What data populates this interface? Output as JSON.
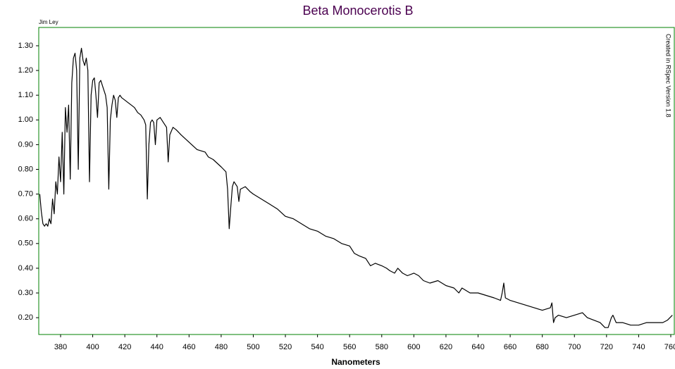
{
  "chart_data": {
    "type": "line",
    "title": "Beta Monocerotis B",
    "xlabel": "Nanometers",
    "annotations": [
      "Jim Ley",
      "Created in RSpec Version 1.8"
    ],
    "color": "#000000",
    "frame_color": "#008000",
    "title_color": "#4b0050",
    "grid": false,
    "xlim": [
      366.4,
      762.2
    ],
    "ylim": [
      0.132,
      1.374
    ],
    "xticks": [
      380,
      400,
      420,
      440,
      460,
      480,
      500,
      520,
      540,
      560,
      580,
      600,
      620,
      640,
      660,
      680,
      700,
      720,
      740,
      760
    ],
    "yticks": [
      {
        "value": 0.2,
        "label": "0.20"
      },
      {
        "value": 0.3,
        "label": "0.30"
      },
      {
        "value": 0.4,
        "label": "0.40"
      },
      {
        "value": 0.5,
        "label": "0.50"
      },
      {
        "value": 0.6,
        "label": "0.60"
      },
      {
        "value": 0.7,
        "label": "0.70"
      },
      {
        "value": 0.8,
        "label": "0.80"
      },
      {
        "value": 0.9,
        "label": "0.90"
      },
      {
        "value": 1.0,
        "label": "1.00"
      },
      {
        "value": 1.1,
        "label": "1.10"
      },
      {
        "value": 1.2,
        "label": "1.20"
      },
      {
        "value": 1.3,
        "label": "1.30"
      }
    ],
    "x": [
      367,
      368,
      369,
      370,
      371,
      372,
      373,
      374,
      375,
      376,
      377,
      378,
      379,
      380,
      381,
      382,
      383,
      384,
      385,
      386,
      387,
      388,
      389,
      390,
      391,
      392,
      393,
      394,
      395,
      396,
      397,
      398,
      399,
      400,
      401,
      402,
      403,
      404,
      405,
      406,
      407,
      408,
      409,
      410,
      411,
      412,
      413,
      414,
      415,
      416,
      417,
      418,
      420,
      422,
      424,
      426,
      428,
      430,
      432,
      433,
      434,
      435,
      436,
      437,
      438,
      439,
      440,
      442,
      444,
      446,
      447,
      448,
      450,
      452,
      455,
      460,
      465,
      470,
      472,
      475,
      480,
      483,
      484,
      485,
      486,
      487,
      488,
      490,
      491,
      492,
      495,
      498,
      500,
      505,
      510,
      515,
      520,
      525,
      530,
      535,
      540,
      545,
      550,
      555,
      560,
      563,
      566,
      570,
      573,
      576,
      580,
      583,
      585,
      588,
      590,
      593,
      596,
      600,
      603,
      606,
      610,
      615,
      620,
      625,
      628,
      630,
      635,
      640,
      645,
      650,
      654,
      655,
      656,
      657,
      660,
      665,
      670,
      675,
      680,
      685,
      686,
      687,
      688,
      690,
      695,
      700,
      705,
      708,
      712,
      716,
      719,
      721,
      723,
      724,
      726,
      730,
      735,
      740,
      745,
      750,
      755,
      758,
      761
    ],
    "values": [
      0.7,
      0.63,
      0.58,
      0.57,
      0.58,
      0.57,
      0.6,
      0.58,
      0.68,
      0.62,
      0.75,
      0.7,
      0.85,
      0.75,
      0.95,
      0.7,
      1.05,
      0.95,
      1.06,
      0.76,
      1.15,
      1.25,
      1.27,
      1.2,
      0.8,
      1.25,
      1.29,
      1.24,
      1.22,
      1.25,
      1.2,
      0.75,
      1.1,
      1.16,
      1.17,
      1.1,
      1.01,
      1.15,
      1.16,
      1.14,
      1.12,
      1.1,
      1.05,
      0.72,
      1.0,
      1.06,
      1.1,
      1.08,
      1.01,
      1.09,
      1.1,
      1.09,
      1.08,
      1.07,
      1.06,
      1.05,
      1.03,
      1.02,
      1.0,
      0.98,
      0.68,
      0.9,
      0.99,
      1.0,
      0.99,
      0.9,
      1.0,
      1.01,
      0.99,
      0.97,
      0.83,
      0.94,
      0.97,
      0.96,
      0.94,
      0.91,
      0.88,
      0.87,
      0.85,
      0.84,
      0.81,
      0.79,
      0.72,
      0.56,
      0.65,
      0.73,
      0.75,
      0.73,
      0.67,
      0.72,
      0.73,
      0.71,
      0.7,
      0.68,
      0.66,
      0.64,
      0.61,
      0.6,
      0.58,
      0.56,
      0.55,
      0.53,
      0.52,
      0.5,
      0.49,
      0.46,
      0.45,
      0.44,
      0.41,
      0.42,
      0.41,
      0.4,
      0.39,
      0.38,
      0.4,
      0.38,
      0.37,
      0.38,
      0.37,
      0.35,
      0.34,
      0.35,
      0.33,
      0.32,
      0.3,
      0.32,
      0.3,
      0.3,
      0.29,
      0.28,
      0.27,
      0.3,
      0.34,
      0.28,
      0.27,
      0.26,
      0.25,
      0.24,
      0.23,
      0.24,
      0.26,
      0.18,
      0.2,
      0.21,
      0.2,
      0.21,
      0.22,
      0.2,
      0.19,
      0.18,
      0.16,
      0.16,
      0.2,
      0.21,
      0.18,
      0.18,
      0.17,
      0.17,
      0.18,
      0.18,
      0.18,
      0.19,
      0.21
    ]
  }
}
